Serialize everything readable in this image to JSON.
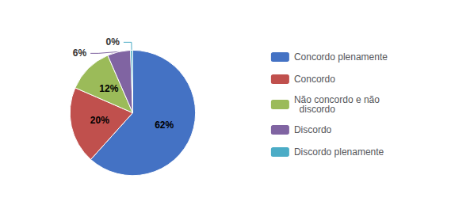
{
  "chart_data": {
    "type": "pie",
    "categories": [
      "Concordo plenamente",
      "Concordo",
      "Não concordo e não\n  discordo",
      "Discordo",
      "Discordo plenamente"
    ],
    "values": [
      62,
      20,
      12,
      6,
      0
    ],
    "value_labels": [
      "62%",
      "20%",
      "12%",
      "6%",
      "0%"
    ],
    "colors": [
      "#4472C4",
      "#C0504D",
      "#9BBB59",
      "#8064A2",
      "#4BACC6"
    ],
    "data_labels": true,
    "legend": "right"
  }
}
